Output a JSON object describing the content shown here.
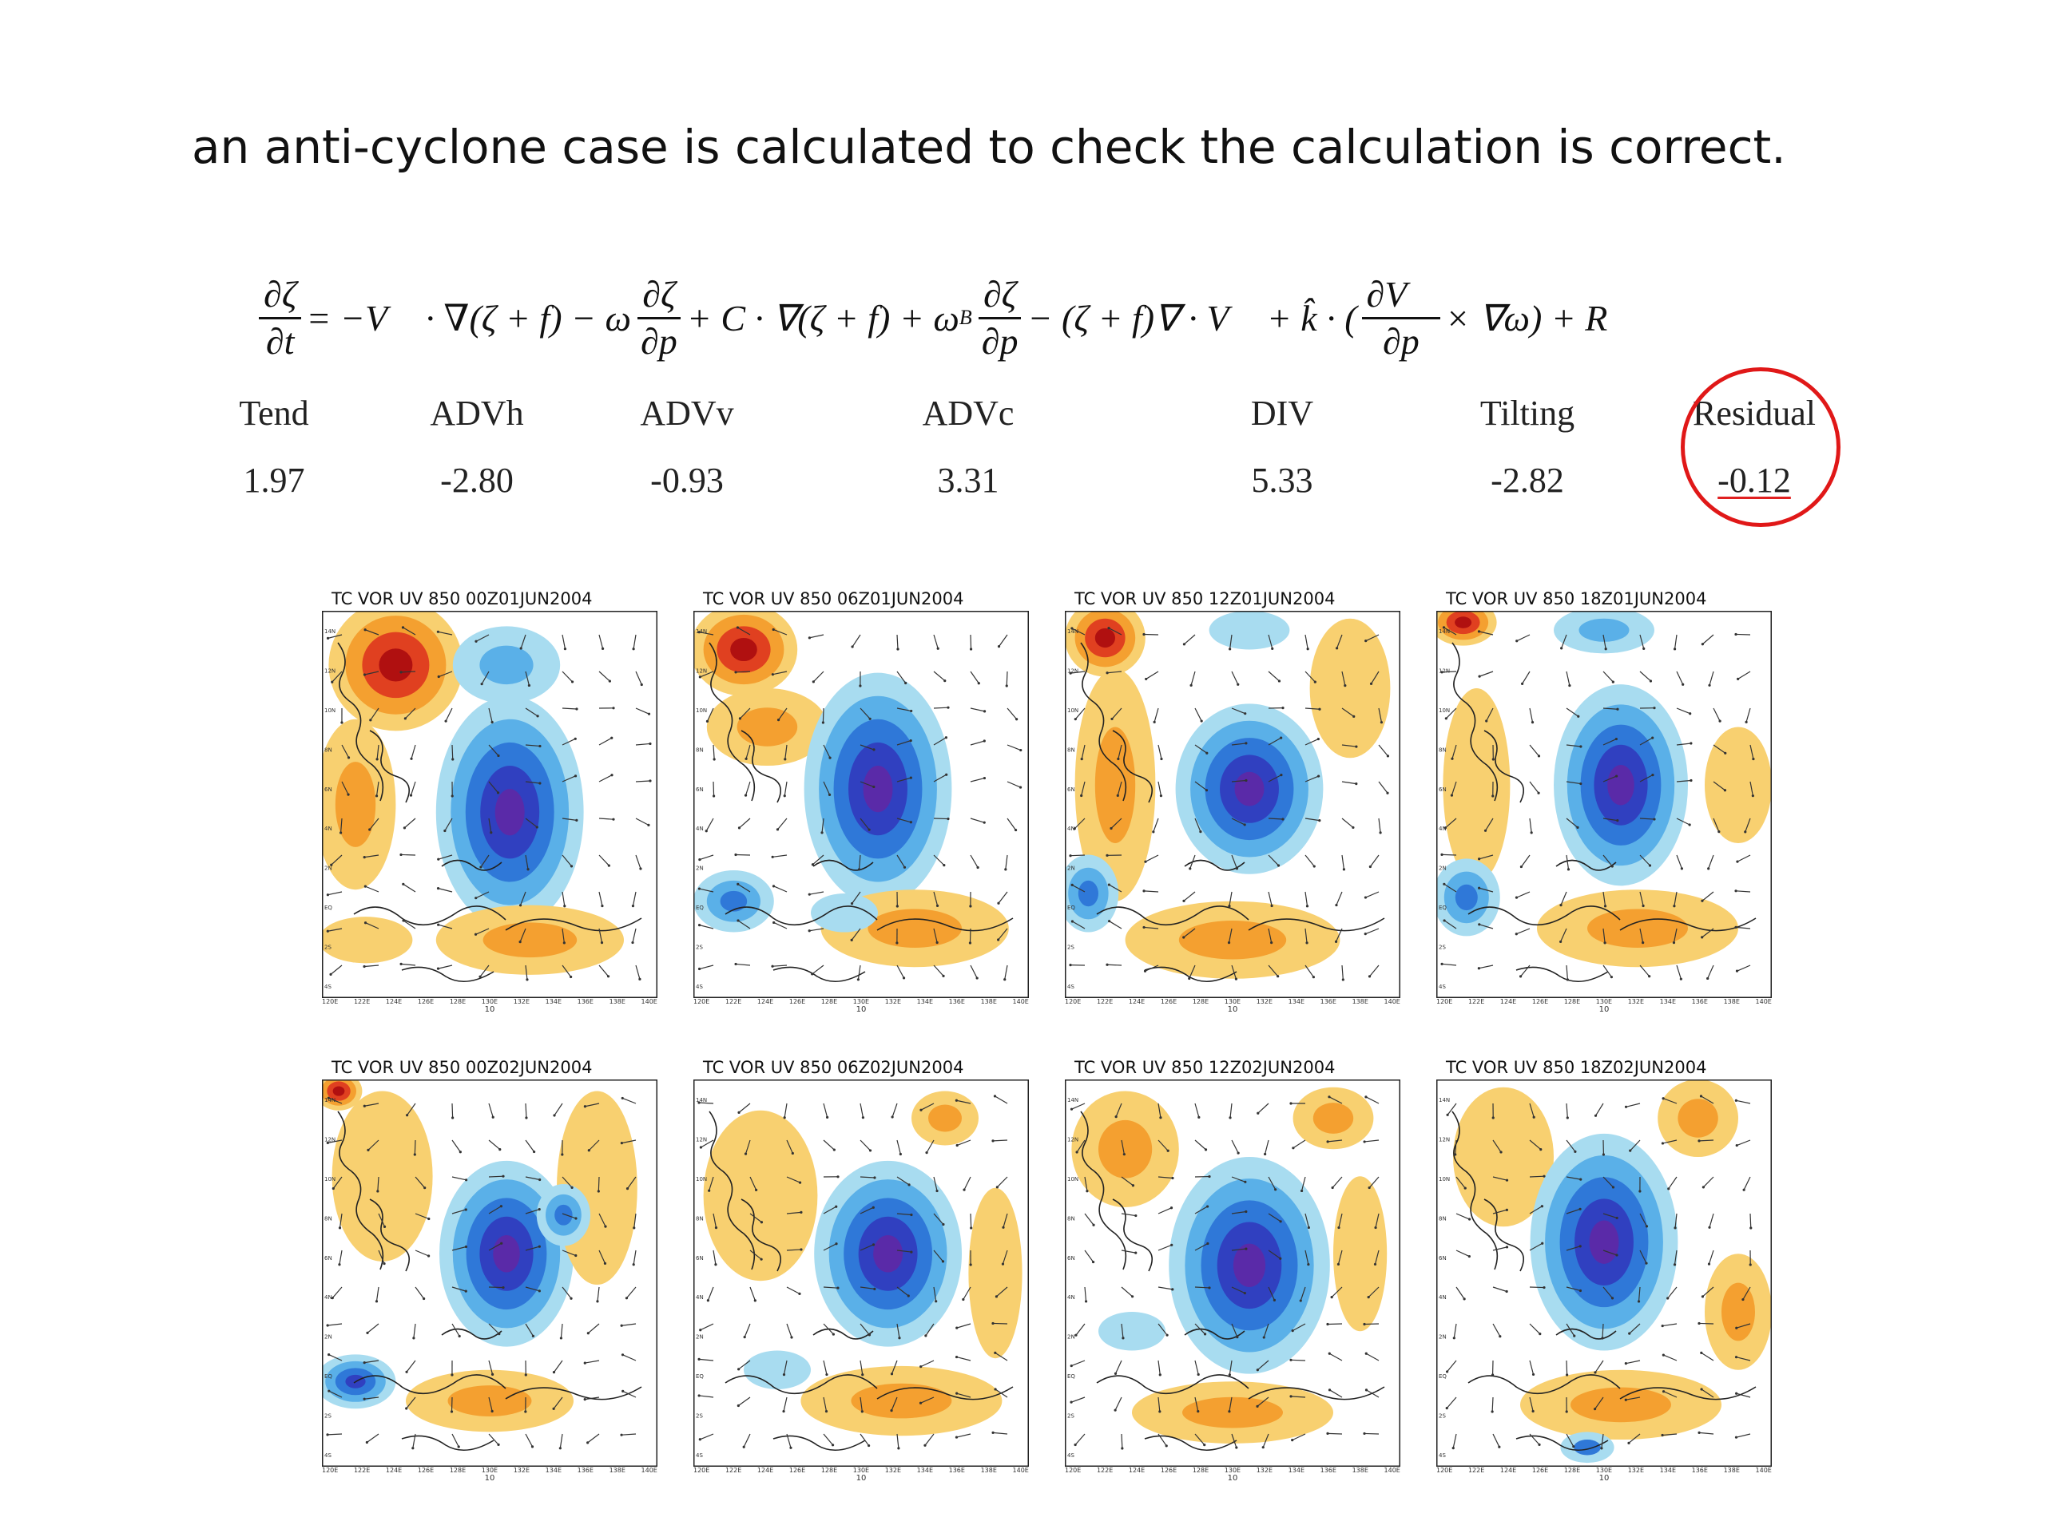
{
  "slide": {
    "headline": "an anti-cyclone case is calculated to check the calculation is correct."
  },
  "equation": {
    "lhs_num": "∂ζ",
    "lhs_den": "∂t",
    "t1": "= −V⃗ · ∇(ζ + f) − ω",
    "f2_num": "∂ζ",
    "f2_den": "∂p",
    "t2": "+ C · ∇(ζ + f) + ω",
    "t2_sub": "B",
    "f3_num": "∂ζ",
    "f3_den": "∂p",
    "t3": "− (ζ + f)∇ · V⃗ + k̂ · (",
    "f4_num": "∂V⃗",
    "f4_den": "∂p",
    "t4": "× ∇ω) + R"
  },
  "budget_terms": [
    {
      "label": "Tend",
      "value": "1.97"
    },
    {
      "label": "ADVh",
      "value": "-2.80"
    },
    {
      "label": "ADVv",
      "value": "-0.93"
    },
    {
      "label": "ADVc",
      "value": "3.31"
    },
    {
      "label": "DIV",
      "value": "5.33"
    },
    {
      "label": "Tilting",
      "value": "-2.82"
    },
    {
      "label": "Residual",
      "value": "-0.12"
    }
  ],
  "panels": [
    {
      "title": "TC   VOR  UV  850  00Z01JUN2004"
    },
    {
      "title": "TC   VOR  UV  850  06Z01JUN2004"
    },
    {
      "title": "TC   VOR  UV  850  12Z01JUN2004"
    },
    {
      "title": "TC   VOR  UV  850  18Z01JUN2004"
    },
    {
      "title": "TC   VOR  UV  850  00Z02JUN2004"
    },
    {
      "title": "TC   VOR  UV  850  06Z02JUN2004"
    },
    {
      "title": "TC   VOR  UV  850  12Z02JUN2004"
    },
    {
      "title": "TC   VOR  UV  850  18Z02JUN2004"
    }
  ],
  "map_axes": {
    "y_ticks": [
      "14N",
      "12N",
      "10N",
      "8N",
      "6N",
      "4N",
      "2N",
      "EQ",
      "2S",
      "4S"
    ],
    "x_ticks": [
      "120E",
      "122E",
      "124E",
      "126E",
      "128E",
      "130E",
      "132E",
      "134E",
      "136E",
      "138E",
      "140E"
    ],
    "vector_scale": "10"
  },
  "colors": {
    "red_dark": "#b01010",
    "red": "#e04020",
    "orange": "#f4a030",
    "yellow": "#f8d070",
    "light_blue": "#a8dcf0",
    "blue_mid": "#5ab0e8",
    "blue": "#2f78d8",
    "blue_deep": "#3040c0",
    "purple": "#5a2aa8",
    "circle": "#e01818"
  }
}
